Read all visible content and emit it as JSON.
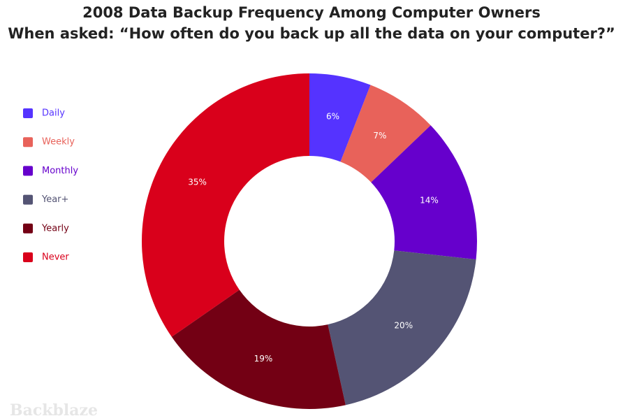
{
  "chart_data": {
    "type": "donut",
    "title": "2008 Data Backup Frequency Among Computer Owners",
    "subtitle": "When asked: “How often do you back up all the data on your computer?”",
    "categories": [
      "Daily",
      "Weekly",
      "Monthly",
      "Year+",
      "Yearly",
      "Never"
    ],
    "values": [
      6,
      7,
      14,
      20,
      19,
      35
    ],
    "value_labels": [
      "6%",
      "7%",
      "14%",
      "20%",
      "19%",
      "35%"
    ],
    "colors": [
      "#5533ff",
      "#e8625a",
      "#6600cc",
      "#545474",
      "#730014",
      "#d9001b"
    ],
    "watermark": "Backblaze",
    "legend": "left"
  }
}
